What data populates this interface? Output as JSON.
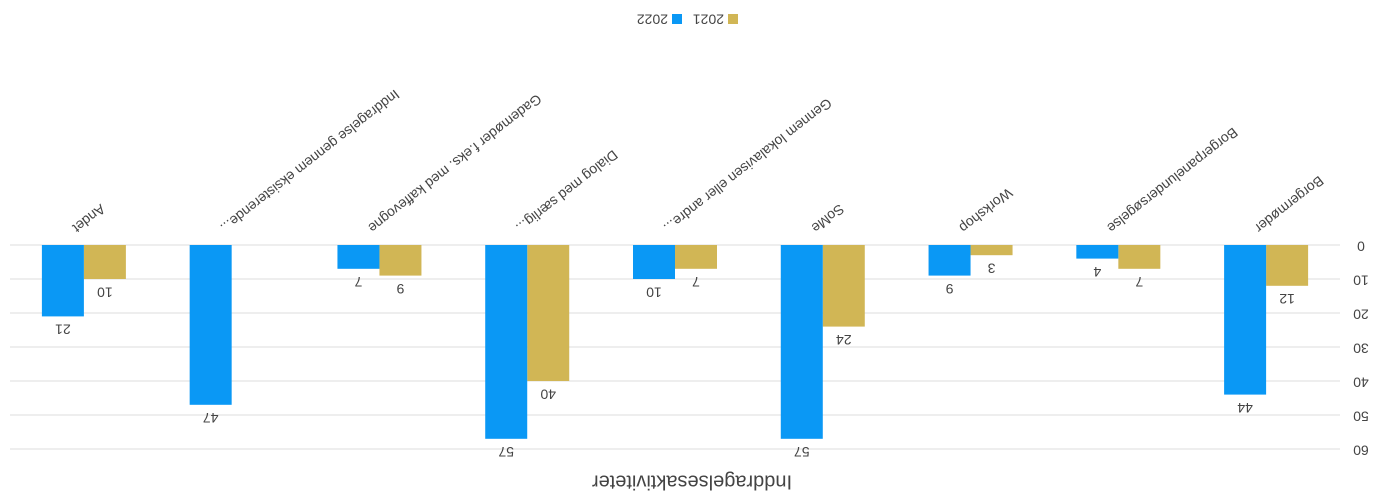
{
  "chart_data": {
    "type": "bar",
    "title": "Inddragelsesaktiviteter",
    "categories": [
      "Borgermøder",
      "Borgerpanelundersøgelse",
      "Workshop",
      "SoMe",
      "Gennem lokalavisen eller andre...",
      "Dialog med særlig...",
      "Gademøder f.eks. med kaffevogne",
      "Inddragelse gennem eksisterende...",
      "Andet"
    ],
    "series": [
      {
        "name": "2021",
        "color": "#d1b655",
        "values": [
          12,
          7,
          3,
          24,
          7,
          40,
          9,
          null,
          10
        ]
      },
      {
        "name": "2022",
        "color": "#0a98f5",
        "values": [
          44,
          4,
          9,
          57,
          10,
          57,
          7,
          47,
          21
        ]
      }
    ],
    "ylim": [
      0,
      60
    ],
    "yticks": [
      0,
      10,
      20,
      30,
      40,
      50,
      60
    ],
    "grid": true,
    "legend": "bottom"
  }
}
